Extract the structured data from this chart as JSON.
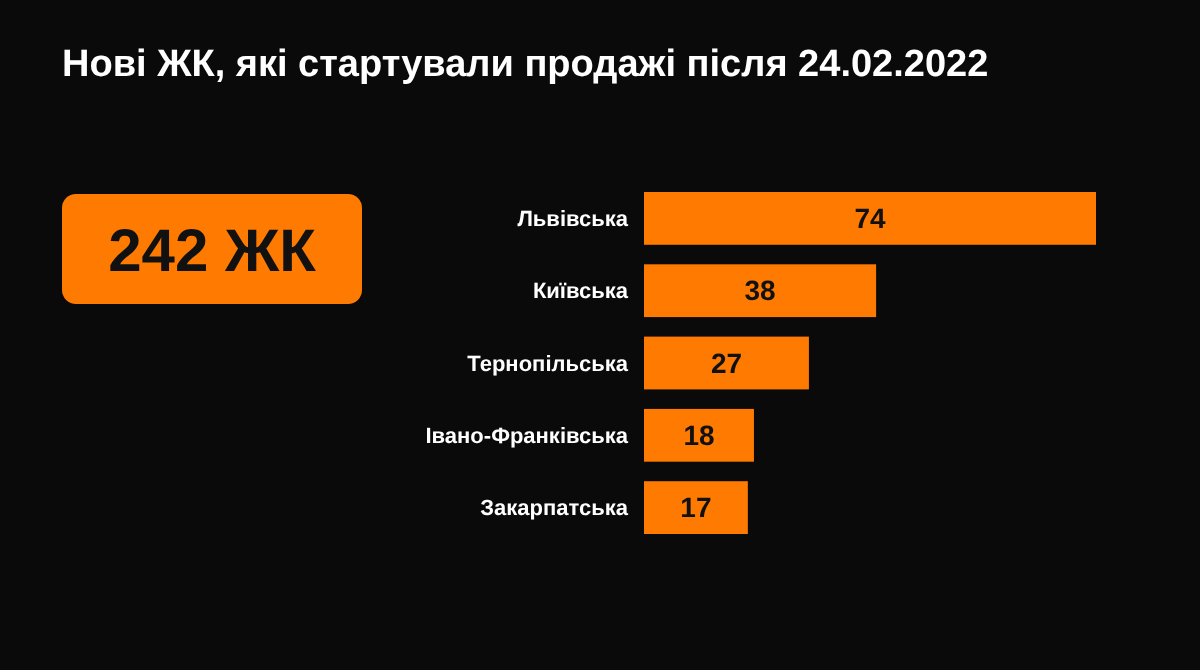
{
  "chart_data": {
    "type": "bar",
    "title": "Нові ЖК, які стартували продажі після 24.02.2022",
    "orientation": "horizontal",
    "categories": [
      "Львівська",
      "Київська",
      "Тернопільська",
      "Івано-Франківська",
      "Закарпатська"
    ],
    "values": [
      74,
      38,
      27,
      18,
      17
    ],
    "color": "#ff7a00",
    "data_labels": true,
    "annotations": [
      "242 ЖК"
    ]
  }
}
